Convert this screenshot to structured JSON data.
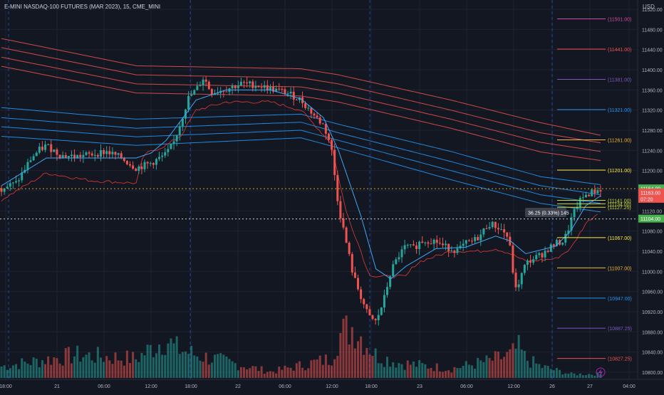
{
  "header": {
    "symbol_title": "E-MINI NASDAQ-100 FUTURES (MAR 2023), 15, CME_MINI",
    "currency": "USD"
  },
  "colors": {
    "background": "#131722",
    "grid": "#1f2331",
    "up": "#26a69a",
    "down": "#ef5350",
    "vwap_blue": "#2196f3",
    "band_red": "#ef5350",
    "session_divider": "#2962ff",
    "axis_text": "#b2b5be"
  },
  "chart_data": {
    "type": "candlestick",
    "symbol": "E-MINI NASDAQ-100 FUTURES (MAR 2023)",
    "interval": "15",
    "exchange": "CME_MINI",
    "y_axis": {
      "min": 10790,
      "max": 11530,
      "ticks": [
        11520,
        11480,
        11440,
        11400,
        11360,
        11320,
        11280,
        11240,
        11200,
        11160,
        11120,
        11080,
        11040,
        11000,
        10960,
        10920,
        10880,
        10840,
        10800
      ]
    },
    "x_axis": {
      "ticks": [
        "18:00",
        "21",
        "06:00",
        "12:00",
        "18:00",
        "22",
        "06:00",
        "12:00",
        "18:00",
        "23",
        "06:00",
        "12:00",
        "26",
        "27",
        "04:00"
      ],
      "session_breaks": [
        "21",
        "22",
        "23",
        "26"
      ]
    },
    "grid": true,
    "close_path": [
      [
        0,
        11165
      ],
      [
        2,
        11175
      ],
      [
        3,
        11200
      ],
      [
        4,
        11225
      ],
      [
        5,
        11240
      ],
      [
        6,
        11250
      ],
      [
        8,
        11230
      ],
      [
        10,
        11228
      ],
      [
        12,
        11232
      ],
      [
        14,
        11238
      ],
      [
        16,
        11225
      ],
      [
        18,
        11205
      ],
      [
        20,
        11215
      ],
      [
        22,
        11232
      ],
      [
        23,
        11255
      ],
      [
        24,
        11300
      ],
      [
        25,
        11345
      ],
      [
        26,
        11360
      ],
      [
        27,
        11385
      ],
      [
        28,
        11355
      ],
      [
        30,
        11362
      ],
      [
        32,
        11372
      ],
      [
        34,
        11370
      ],
      [
        36,
        11362
      ],
      [
        38,
        11355
      ],
      [
        40,
        11340
      ],
      [
        42,
        11305
      ],
      [
        43,
        11290
      ],
      [
        44,
        11250
      ],
      [
        45,
        11130
      ],
      [
        46,
        11060
      ],
      [
        47,
        10990
      ],
      [
        48,
        10950
      ],
      [
        49,
        10910
      ],
      [
        50,
        10900
      ],
      [
        51,
        10940
      ],
      [
        52,
        11000
      ],
      [
        53,
        11030
      ],
      [
        54,
        11050
      ],
      [
        55,
        11045
      ],
      [
        56,
        11060
      ],
      [
        57,
        11062
      ],
      [
        58,
        11060
      ],
      [
        59,
        11050
      ],
      [
        60,
        11045
      ],
      [
        61,
        11042
      ],
      [
        62,
        11055
      ],
      [
        63,
        11060
      ],
      [
        64,
        11072
      ],
      [
        65,
        11095
      ],
      [
        66,
        11090
      ],
      [
        67,
        11080
      ],
      [
        67.5,
        11070
      ],
      [
        68,
        11040
      ],
      [
        68.6,
        10960
      ],
      [
        69,
        10975
      ],
      [
        70,
        11015
      ],
      [
        71,
        11025
      ],
      [
        72,
        11032
      ],
      [
        73,
        11045
      ],
      [
        74,
        11055
      ],
      [
        75,
        11060
      ],
      [
        75.5,
        11075
      ],
      [
        76,
        11100
      ],
      [
        77,
        11135
      ],
      [
        78,
        11152
      ],
      [
        79,
        11158
      ],
      [
        80,
        11163
      ]
    ],
    "total_bars": 206,
    "ma_blue_bands": [
      [
        [
          0,
          11325
        ],
        [
          18,
          11302
        ],
        [
          40,
          11312
        ],
        [
          45,
          11292
        ],
        [
          60,
          11238
        ],
        [
          72,
          11188
        ],
        [
          80,
          11172
        ]
      ],
      [
        [
          0,
          11305
        ],
        [
          18,
          11284
        ],
        [
          40,
          11296
        ],
        [
          45,
          11275
        ],
        [
          60,
          11218
        ],
        [
          72,
          11170
        ],
        [
          80,
          11152
        ]
      ],
      [
        [
          0,
          11287
        ],
        [
          18,
          11267
        ],
        [
          40,
          11280
        ],
        [
          45,
          11260
        ],
        [
          60,
          11200
        ],
        [
          72,
          11152
        ],
        [
          80,
          11135
        ]
      ],
      [
        [
          0,
          11268
        ],
        [
          18,
          11250
        ],
        [
          40,
          11265
        ],
        [
          45,
          11245
        ],
        [
          60,
          11182
        ],
        [
          72,
          11135
        ],
        [
          80,
          11118
        ]
      ]
    ],
    "ma_blue_fast": [
      [
        0,
        11170
      ],
      [
        6,
        11225
      ],
      [
        12,
        11225
      ],
      [
        18,
        11225
      ],
      [
        20,
        11235
      ],
      [
        22,
        11260
      ],
      [
        24,
        11300
      ],
      [
        26,
        11340
      ],
      [
        30,
        11360
      ],
      [
        36,
        11360
      ],
      [
        40,
        11342
      ],
      [
        43,
        11305
      ],
      [
        45,
        11240
      ],
      [
        48,
        11110
      ],
      [
        50,
        11005
      ],
      [
        52,
        10985
      ],
      [
        54,
        11010
      ],
      [
        58,
        11045
      ],
      [
        62,
        11048
      ],
      [
        66,
        11070
      ],
      [
        68,
        11060
      ],
      [
        70,
        11035
      ],
      [
        74,
        11050
      ],
      [
        76,
        11080
      ],
      [
        78,
        11130
      ],
      [
        80,
        11150
      ]
    ],
    "ma_red_bands": [
      [
        [
          0,
          11462
        ],
        [
          18,
          11408
        ],
        [
          40,
          11402
        ],
        [
          45,
          11390
        ],
        [
          60,
          11340
        ],
        [
          72,
          11295
        ],
        [
          80,
          11270
        ]
      ],
      [
        [
          0,
          11444
        ],
        [
          18,
          11390
        ],
        [
          40,
          11384
        ],
        [
          45,
          11372
        ],
        [
          60,
          11320
        ],
        [
          72,
          11275
        ],
        [
          80,
          11255
        ]
      ],
      [
        [
          0,
          11425
        ],
        [
          18,
          11372
        ],
        [
          40,
          11366
        ],
        [
          45,
          11354
        ],
        [
          60,
          11302
        ],
        [
          72,
          11256
        ],
        [
          80,
          11238
        ]
      ],
      [
        [
          0,
          11407
        ],
        [
          18,
          11354
        ],
        [
          40,
          11348
        ],
        [
          45,
          11336
        ],
        [
          60,
          11284
        ],
        [
          72,
          11237
        ],
        [
          80,
          11220
        ]
      ]
    ],
    "red_trailing_stop": [
      [
        0,
        11142
      ],
      [
        6,
        11195
      ],
      [
        12,
        11180
      ],
      [
        18,
        11175
      ],
      [
        19,
        11232
      ],
      [
        22,
        11250
      ],
      [
        24,
        11270
      ],
      [
        26,
        11320
      ],
      [
        30,
        11336
      ],
      [
        36,
        11336
      ],
      [
        40,
        11320
      ],
      [
        44,
        11255
      ],
      [
        46,
        11120
      ],
      [
        47,
        11080
      ],
      [
        48,
        11040
      ],
      [
        49,
        10995
      ],
      [
        50,
        10990
      ],
      [
        52,
        10990
      ],
      [
        54,
        10990
      ],
      [
        55,
        11010
      ],
      [
        56,
        11020
      ],
      [
        60,
        11040
      ],
      [
        64,
        11040
      ],
      [
        66,
        11045
      ],
      [
        68,
        11035
      ],
      [
        70,
        11020
      ],
      [
        74,
        11025
      ],
      [
        76,
        11045
      ],
      [
        78,
        11095
      ],
      [
        80,
        11120
      ]
    ],
    "volume": {
      "max": 1,
      "spikes": [
        [
          0,
          0.15
        ],
        [
          10,
          0.3
        ],
        [
          18,
          0.25
        ],
        [
          22,
          0.52
        ],
        [
          23,
          0.4
        ],
        [
          26,
          0.3
        ],
        [
          36,
          0.08
        ],
        [
          44,
          0.25
        ],
        [
          45,
          0.55
        ],
        [
          46,
          0.62
        ],
        [
          47,
          0.68
        ],
        [
          48,
          0.55
        ],
        [
          50,
          0.3
        ],
        [
          53,
          0.2
        ],
        [
          60,
          0.12
        ],
        [
          65,
          0.22
        ],
        [
          68,
          0.3
        ],
        [
          69,
          0.4
        ],
        [
          70,
          0.25
        ],
        [
          72,
          0.15
        ],
        [
          76,
          0.05
        ]
      ]
    },
    "horizontal_levels": [
      {
        "value": 11501.0,
        "label": "(11501.00)",
        "color": "#d04ba5"
      },
      {
        "value": 11441.0,
        "label": "(11441.00)",
        "color": "#f05050"
      },
      {
        "value": 11381.0,
        "label": "(11381.00)",
        "color": "#7e57c2"
      },
      {
        "value": 11321.0,
        "label": "(11321.00)",
        "color": "#2196f3"
      },
      {
        "value": 11261.0,
        "label": "(11261.00)",
        "color": "#f5b731"
      },
      {
        "value": 11201.0,
        "label": "(11201.00)",
        "color": "#ffeb3b"
      },
      {
        "value": 11141.0,
        "label": "(11141.00)",
        "color": "#cddc39"
      },
      {
        "value": 11134.0,
        "label": "(11134.00)",
        "color": "#cddc39"
      },
      {
        "value": 11127.25,
        "label": "(11127.25)",
        "color": "#cddc39"
      },
      {
        "value": 11067.0,
        "label": "(11067.00)",
        "color": "#ffeb3b"
      },
      {
        "value": 11007.0,
        "label": "(11007.00)",
        "color": "#f5b731"
      },
      {
        "value": 10947.0,
        "label": "(10947.00)",
        "color": "#2196f3"
      },
      {
        "value": 10887.25,
        "label": "(10887.25)",
        "color": "#7e57c2"
      },
      {
        "value": 10827.25,
        "label": "(10827.25)",
        "color": "#f05050"
      }
    ],
    "price_badges": [
      {
        "value": 11164.0,
        "label": "11164.00",
        "color": "#4caf50"
      },
      {
        "value": 11163.0,
        "label": "11163.00",
        "sub": "07:20",
        "color": "#ef5350"
      },
      {
        "value": 11104.0,
        "label": "11104.00",
        "color": "#4caf50"
      }
    ],
    "dotted_price_lines": [
      {
        "value": 11164.0,
        "color": "#c9a227"
      },
      {
        "value": 11104.0,
        "color": "#cfcfcf"
      }
    ],
    "measure_annotation": "36.25 (0.33%) 145"
  }
}
